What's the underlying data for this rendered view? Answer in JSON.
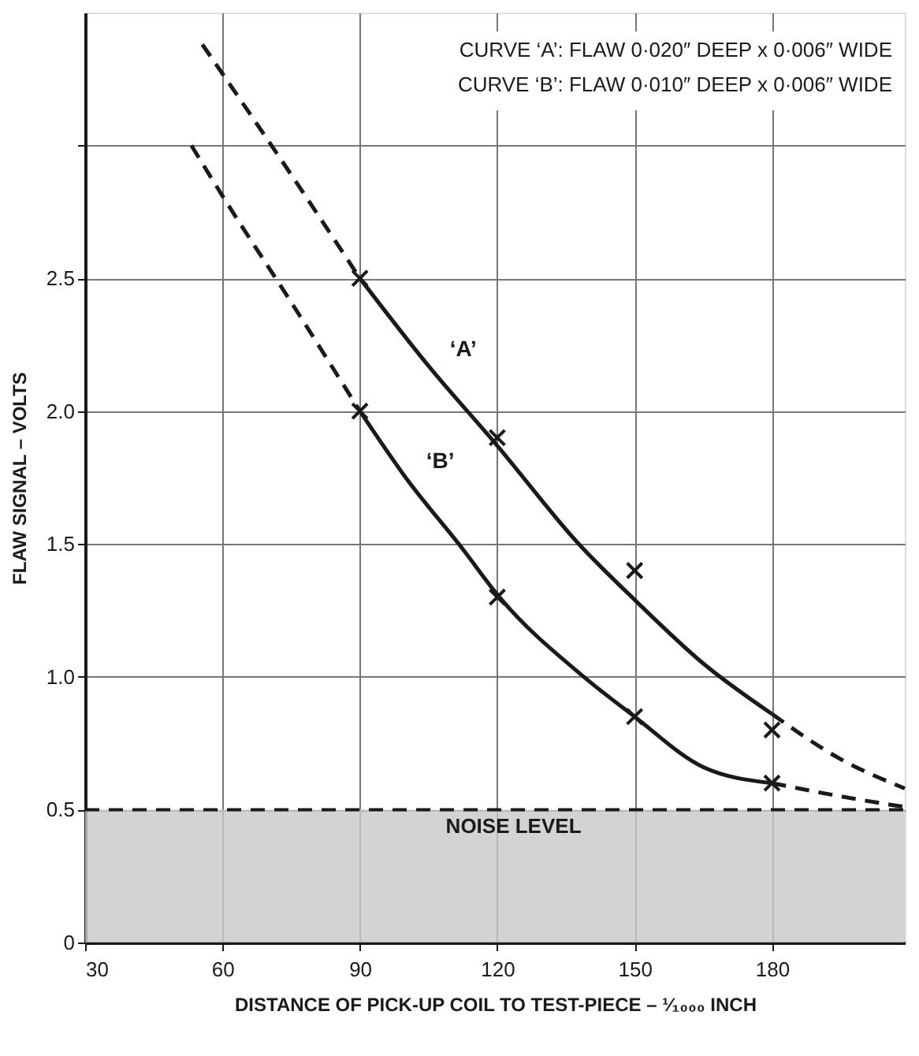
{
  "chart_data": {
    "type": "line",
    "xlabel": "DISTANCE OF PICK-UP COIL TO TEST-PIECE – ¹⁄₁₀₀₀ INCH",
    "ylabel": "FLAW SIGNAL – VOLTS",
    "xlim": [
      30,
      209
    ],
    "ylim": [
      0,
      3.5
    ],
    "xticks": [
      30,
      60,
      90,
      120,
      150,
      180
    ],
    "yticks": [
      0,
      0.5,
      {
        "value": 1.0,
        "label": "1.0"
      },
      1.5,
      {
        "value": 2.0,
        "label": "2.0"
      },
      2.5,
      {
        "value": 3.0,
        "label": null
      }
    ],
    "grid": true,
    "series": [
      {
        "line_style": "dashed",
        "color": "#1a1a1a",
        "x": [
          55.6,
          60,
          75,
          90
        ],
        "values": [
          3.38,
          3.27,
          2.89,
          2.5
        ]
      },
      {
        "name": "‘A’",
        "line_style": "solid",
        "color": "#1a1a1a",
        "x": [
          90,
          105,
          120,
          137.8,
          150,
          165,
          180
        ],
        "values": [
          2.5,
          2.17,
          1.87,
          1.5,
          1.29,
          1.05,
          0.86
        ]
      },
      {
        "line_style": "dashed",
        "color": "#1a1a1a",
        "x": [
          180,
          195,
          209
        ],
        "values": [
          0.86,
          0.69,
          0.58
        ]
      },
      {
        "line_style": "dashed",
        "color": "#1a1a1a",
        "x": [
          53.2,
          60,
          75,
          90
        ],
        "values": [
          3.0,
          2.81,
          2.41,
          2.0
        ]
      },
      {
        "name": "‘B’",
        "line_style": "solid",
        "color": "#1a1a1a",
        "x": [
          90,
          100,
          112.5,
          120,
          138.9,
          150,
          165,
          180
        ],
        "values": [
          2.0,
          1.75,
          1.48,
          1.31,
          1.0,
          0.85,
          0.66,
          0.6
        ]
      },
      {
        "line_style": "dashed",
        "color": "#1a1a1a",
        "x": [
          180,
          195,
          209
        ],
        "values": [
          0.6,
          0.55,
          0.51
        ]
      },
      {
        "type": "scatter",
        "marker": "cross",
        "color": "#1a1a1a",
        "x": [
          90,
          120,
          150,
          180
        ],
        "values": [
          2.5,
          1.9,
          1.4,
          0.8
        ]
      },
      {
        "type": "scatter",
        "marker": "cross",
        "color": "#1a1a1a",
        "x": [
          90,
          120,
          150,
          180
        ],
        "values": [
          2.0,
          1.3,
          0.85,
          0.6
        ]
      }
    ],
    "ref_lines": [
      {
        "axis": "y",
        "value": 0.5,
        "label": "NOISE LEVEL",
        "line_style": "dashed",
        "color": "#1a1a1a"
      }
    ],
    "bands": [
      {
        "axis": "y",
        "from": 0,
        "to": 0.5,
        "color": "#c8c8c8"
      }
    ],
    "annotations": [
      "CURVE ‘A’: FLAW 0·020″ DEEP x 0·006″ WIDE",
      "CURVE ‘B’: FLAW 0·010″ DEEP x 0·006″ WIDE"
    ]
  }
}
